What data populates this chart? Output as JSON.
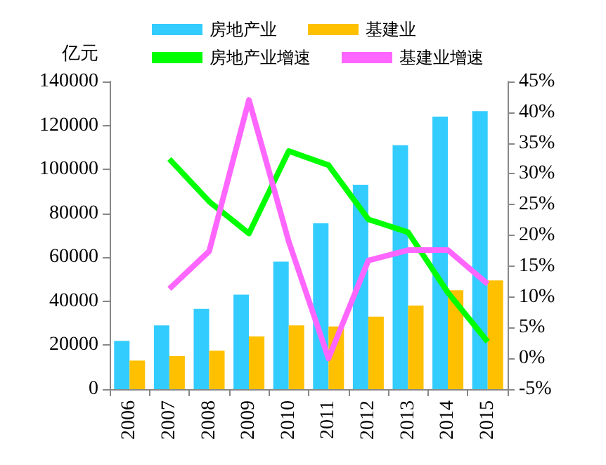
{
  "chart_data": {
    "type": "bar",
    "ylabel": "亿元",
    "categories": [
      "2006",
      "2007",
      "2008",
      "2009",
      "2010",
      "2011",
      "2012",
      "2013",
      "2014",
      "2015"
    ],
    "series": [
      {
        "name": "房地产业",
        "color": "#33ccff",
        "values": [
          22000,
          29000,
          36500,
          43000,
          58000,
          75500,
          93000,
          111000,
          124000,
          126500
        ]
      },
      {
        "name": "基建业",
        "color": "#ffc000",
        "values": [
          13000,
          15000,
          17500,
          24000,
          29000,
          28500,
          33000,
          38000,
          45000,
          49500
        ]
      },
      {
        "name": "房地产业增速",
        "type": "line",
        "axis": "y2",
        "color": "#00ff00",
        "values": [
          null,
          32.4,
          25.5,
          20.3,
          33.7,
          31.4,
          22.6,
          20.5,
          10.7,
          2.7
        ]
      },
      {
        "name": "基建业增速",
        "type": "line",
        "axis": "y2",
        "color": "#ff66ff",
        "values": [
          null,
          11.3,
          17.4,
          42,
          19,
          0,
          15.9,
          17.6,
          17.6,
          12.1
        ]
      }
    ],
    "ylim": [
      0,
      140000
    ],
    "yticks": [
      0,
      20000,
      40000,
      60000,
      80000,
      100000,
      120000,
      140000
    ],
    "y2lim": [
      -5,
      45
    ],
    "y2ticks": [
      {
        "value": -5,
        "label": "-5%"
      },
      {
        "value": 0,
        "label": "0%"
      },
      {
        "value": 5,
        "label": "5%"
      },
      {
        "value": 10,
        "label": "10%"
      },
      {
        "value": 15,
        "label": "15%"
      },
      {
        "value": 20,
        "label": "20%"
      },
      {
        "value": 25,
        "label": "25%"
      },
      {
        "value": 30,
        "label": "30%"
      },
      {
        "value": 35,
        "label": "35%"
      },
      {
        "value": 40,
        "label": "40%"
      },
      {
        "value": 45,
        "label": "45%"
      }
    ],
    "grid": false,
    "legend": "top",
    "marker": "none",
    "line_style": "solid"
  }
}
